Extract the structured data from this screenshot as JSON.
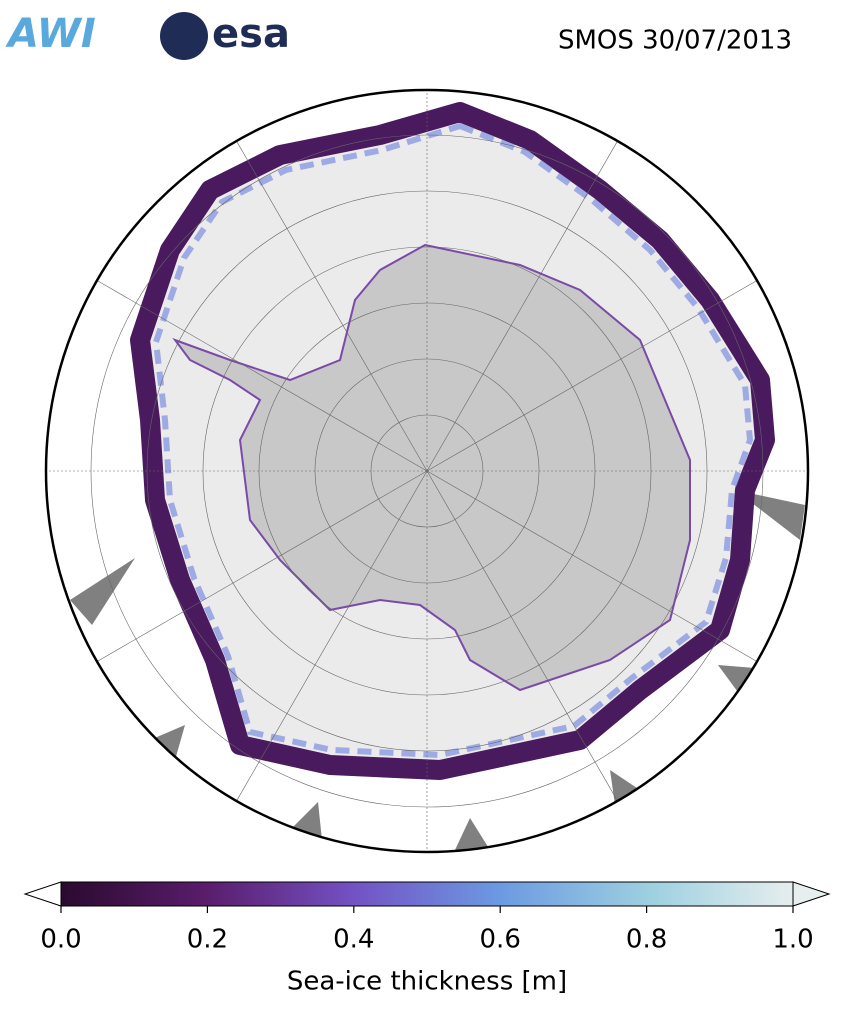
{
  "header": {
    "logos": [
      "AWI",
      "esa"
    ],
    "title": "SMOS 30/07/2013"
  },
  "colorbar": {
    "label": "Sea-ice thickness [m]",
    "lim": [
      0,
      1
    ],
    "ticks": [
      {
        "value": 0,
        "label": "0.0"
      },
      {
        "value": 0.2,
        "label": "0.2"
      },
      {
        "value": 0.4,
        "label": "0.4"
      },
      {
        "value": 0.6,
        "label": "0.6"
      },
      {
        "value": 0.8,
        "label": "0.8"
      },
      {
        "value": 1,
        "label": "1.0"
      }
    ]
  }
}
